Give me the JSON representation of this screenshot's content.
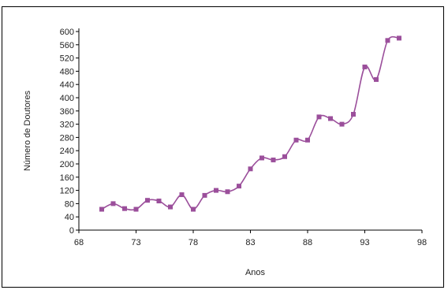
{
  "chart_data": {
    "type": "line",
    "xlabel": "Anos",
    "ylabel": "Número de Doutores",
    "xlim": [
      68,
      98
    ],
    "ylim": [
      0,
      600
    ],
    "x_ticks": [
      68,
      73,
      78,
      83,
      88,
      93,
      98
    ],
    "y_ticks": [
      0,
      40,
      80,
      120,
      160,
      200,
      240,
      280,
      320,
      360,
      400,
      440,
      480,
      520,
      560,
      600
    ],
    "grid": false,
    "series": [
      {
        "color": "#9b4f9b",
        "x": [
          70,
          71,
          72,
          73,
          74,
          75,
          76,
          77,
          78,
          79,
          80,
          81,
          82,
          83,
          84,
          85,
          86,
          87,
          88,
          89,
          90,
          91,
          92,
          93,
          94,
          95,
          96
        ],
        "y": [
          63,
          80,
          65,
          63,
          90,
          88,
          70,
          107,
          63,
          105,
          120,
          116,
          133,
          185,
          218,
          212,
          222,
          272,
          272,
          342,
          337,
          320,
          350,
          493,
          455,
          573,
          580
        ]
      }
    ]
  }
}
